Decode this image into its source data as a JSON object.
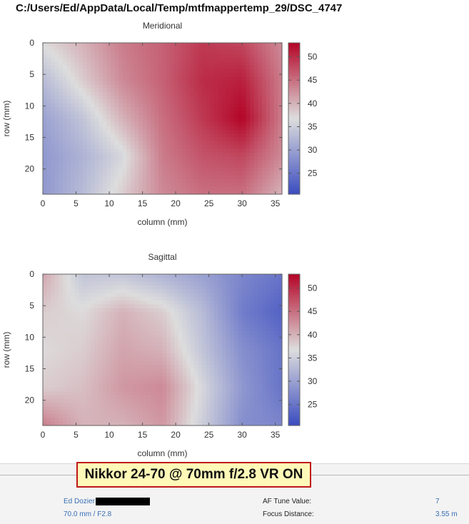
{
  "window": {
    "title": "C:/Users/Ed/AppData/Local/Temp/mtfmappertemp_29/DSC_4747"
  },
  "chart_data": [
    {
      "type": "heatmap",
      "title": "Meridional",
      "xlabel": "column (mm)",
      "ylabel": "row (mm)",
      "xlim": [
        0,
        36
      ],
      "ylim": [
        0,
        24
      ],
      "y_axis_inverted": true,
      "x_ticks": [
        "0",
        "5",
        "10",
        "15",
        "20",
        "25",
        "30",
        "35"
      ],
      "y_ticks": [
        "0",
        "5",
        "10",
        "15",
        "20"
      ],
      "colorbar": {
        "min": 20.5,
        "max": 53,
        "ticks": [
          "25",
          "30",
          "35",
          "40",
          "45",
          "50"
        ]
      },
      "x": [
        0,
        6,
        12,
        18,
        24,
        30,
        36
      ],
      "y": [
        0,
        6,
        12,
        18,
        24
      ],
      "z": [
        [
          37,
          40,
          44,
          46,
          49,
          48,
          43
        ],
        [
          33,
          38,
          43,
          46,
          50,
          51,
          44
        ],
        [
          30,
          34,
          40,
          45,
          49,
          53,
          44
        ],
        [
          29,
          32,
          36,
          44,
          47,
          48,
          43
        ],
        [
          29,
          33,
          38,
          43,
          45,
          45,
          40
        ]
      ]
    },
    {
      "type": "heatmap",
      "title": "Sagittal",
      "xlabel": "column (mm)",
      "ylabel": "row (mm)",
      "xlim": [
        0,
        36
      ],
      "ylim": [
        0,
        24
      ],
      "y_axis_inverted": true,
      "x_ticks": [
        "0",
        "5",
        "10",
        "15",
        "20",
        "25",
        "30",
        "35"
      ],
      "y_ticks": [
        "0",
        "5",
        "10",
        "15",
        "20"
      ],
      "colorbar": {
        "min": 20.5,
        "max": 53,
        "ticks": [
          "25",
          "30",
          "35",
          "40",
          "45",
          "50"
        ]
      },
      "x": [
        0,
        6,
        12,
        18,
        24,
        30,
        36
      ],
      "y": [
        0,
        6,
        12,
        18,
        24
      ],
      "z": [
        [
          41,
          34,
          34,
          32,
          30,
          27,
          25
        ],
        [
          38,
          37,
          40,
          38,
          33,
          26,
          23
        ],
        [
          37,
          38,
          41,
          40,
          34,
          28,
          25
        ],
        [
          38,
          39,
          42,
          43,
          36,
          29,
          25
        ],
        [
          44,
          40,
          40,
          42,
          35,
          28,
          27
        ]
      ]
    }
  ],
  "footer": {
    "name": "Ed Dozier",
    "lens_info": "70.0 mm / F2.8",
    "af_tune_label": "AF Tune Value:",
    "af_tune_value": "7",
    "focus_distance_label": "Focus Distance:",
    "focus_distance_value": "3.55 m"
  },
  "caption": {
    "text": "Nikkor 24-70 @ 70mm f/2.8 VR ON",
    "border_color": "#c01818",
    "background": "#fff9b8"
  },
  "colors": {
    "cmap_low": "#3b4cc0",
    "cmap_mid": "#dddddd",
    "cmap_high": "#b40426"
  }
}
